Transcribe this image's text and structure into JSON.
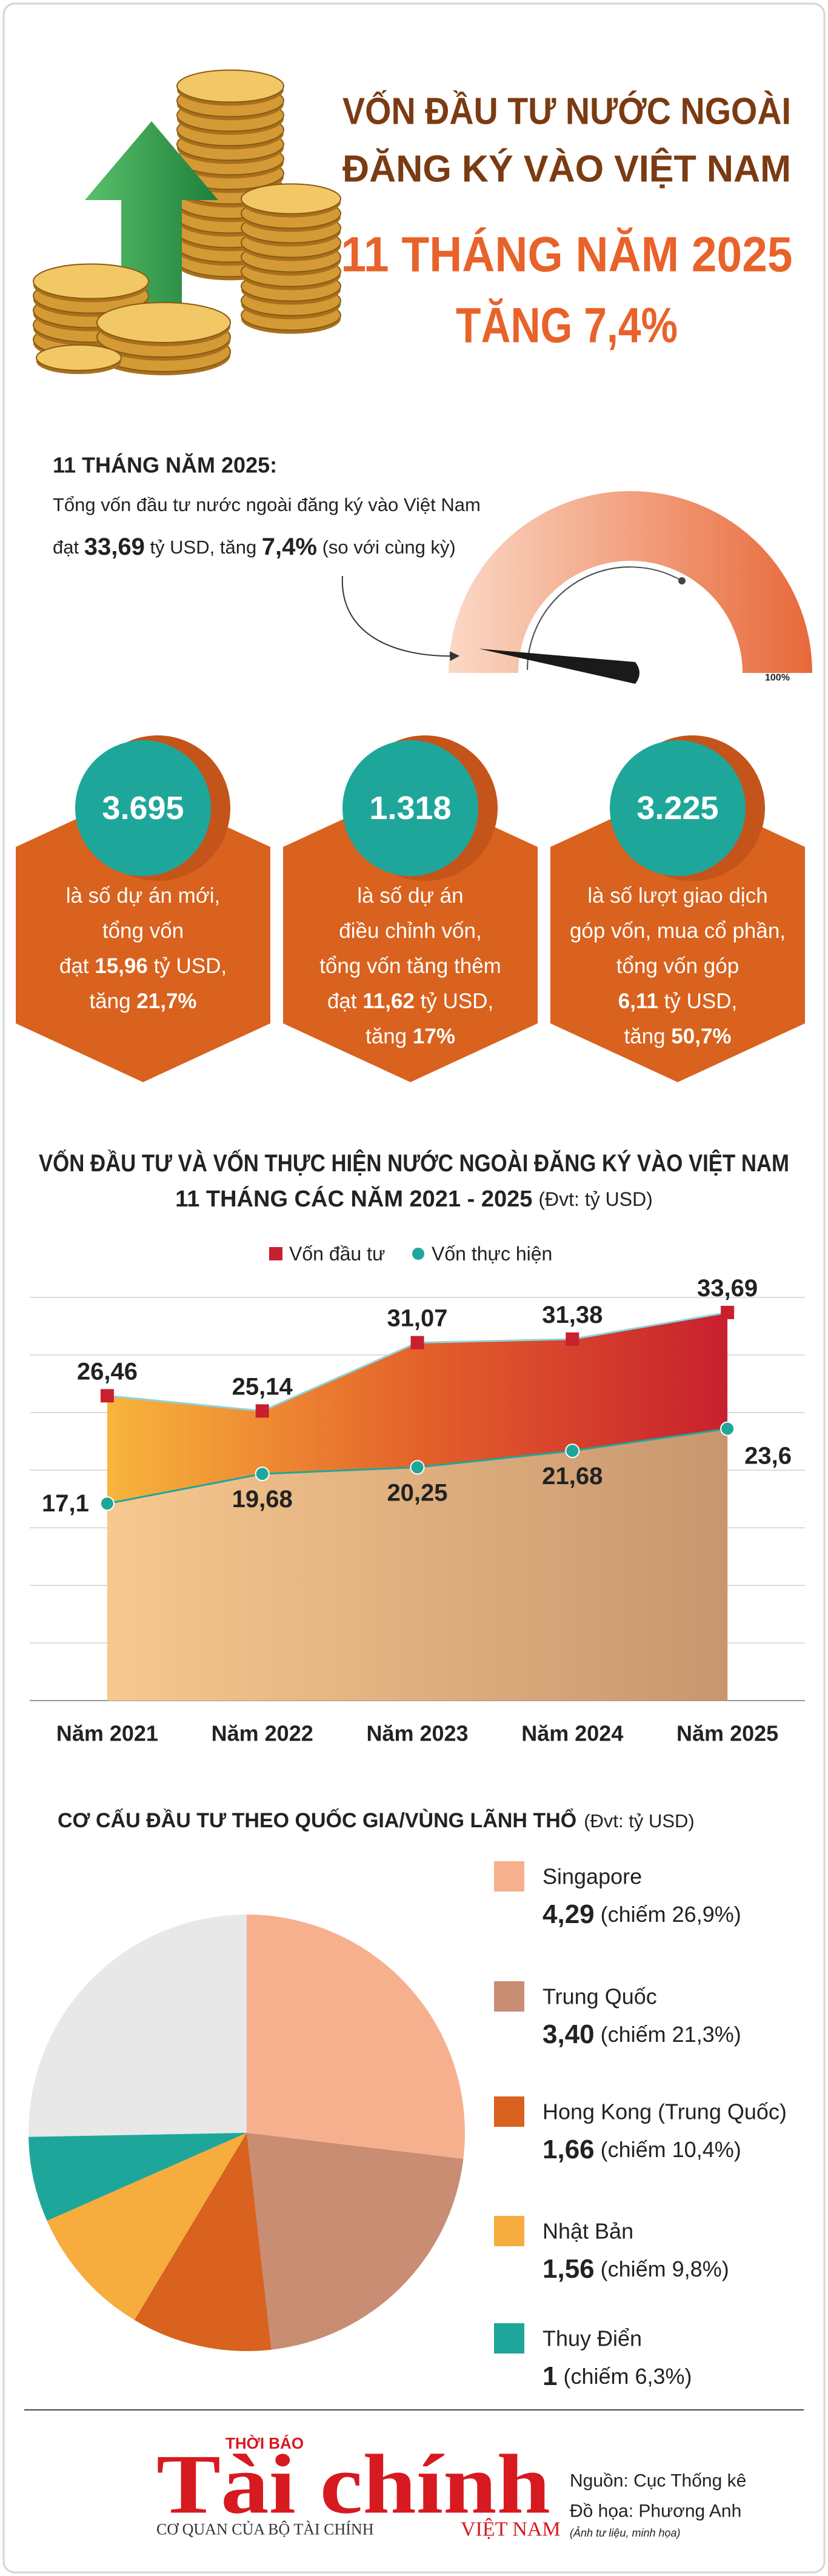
{
  "header": {
    "title_lines": [
      "VỐN ĐẦU TƯ NƯỚC NGOÀI",
      "ĐĂNG KÝ VÀO VIỆT NAM"
    ],
    "highlight_lines": [
      "11 THÁNG NĂM 2025",
      "TĂNG 7,4%"
    ]
  },
  "summary": {
    "heading": "11 THÁNG NĂM 2025:",
    "lines": [
      [
        {
          "text": "Tổng vốn đầu tư nước ngoài đăng ký vào Việt Nam"
        }
      ],
      [
        {
          "text": "đạt "
        },
        {
          "text": "33,69",
          "bold": true
        },
        {
          "text": " tỷ USD, tăng "
        },
        {
          "text": "7,4%",
          "bold": true
        },
        {
          "text": " (so với cùng kỳ)"
        }
      ]
    ],
    "gauge_label": "100%"
  },
  "stats": [
    {
      "number": "3.695",
      "lines": [
        [
          {
            "text": "là số dự án mới,"
          }
        ],
        [
          {
            "text": "tổng vốn"
          }
        ],
        [
          {
            "text": "đạt "
          },
          {
            "text": "15,96",
            "bold": true
          },
          {
            "text": " tỷ USD,"
          }
        ],
        [
          {
            "text": "tăng "
          },
          {
            "text": "21,7%",
            "bold": true
          }
        ]
      ]
    },
    {
      "number": "1.318",
      "lines": [
        [
          {
            "text": "là số dự án"
          }
        ],
        [
          {
            "text": "điều chỉnh vốn,"
          }
        ],
        [
          {
            "text": "tổng vốn tăng thêm"
          }
        ],
        [
          {
            "text": "đạt "
          },
          {
            "text": "11,62",
            "bold": true
          },
          {
            "text": " tỷ USD,"
          }
        ],
        [
          {
            "text": "tăng "
          },
          {
            "text": "17%",
            "bold": true
          }
        ]
      ]
    },
    {
      "number": "3.225",
      "lines": [
        [
          {
            "text": "là số lượt giao dịch"
          }
        ],
        [
          {
            "text": "góp vốn, mua cổ phần,"
          }
        ],
        [
          {
            "text": "tổng vốn góp"
          }
        ],
        [
          {
            "text": "6,11",
            "bold": true
          },
          {
            "text": " tỷ USD,"
          }
        ],
        [
          {
            "text": "tăng "
          },
          {
            "text": "50,7%",
            "bold": true
          }
        ]
      ]
    }
  ],
  "chart_data": [
    {
      "type": "line",
      "title_lines": [
        "VỐN ĐẦU TƯ VÀ VỐN THỰC HIỆN NƯỚC NGOÀI ĐĂNG KÝ VÀO VIỆT NAM",
        "11 THÁNG CÁC NĂM 2021 - 2025"
      ],
      "unit": "(Đvt: tỷ USD)",
      "categories": [
        "Năm 2021",
        "Năm 2022",
        "Năm 2023",
        "Năm 2024",
        "Năm 2025"
      ],
      "series": [
        {
          "name": "Vốn đầu tư",
          "color": "#c8202e",
          "values": [
            26.46,
            25.14,
            31.07,
            31.38,
            33.69
          ],
          "value_labels": [
            "26,46",
            "25,14",
            "31,07",
            "31,38",
            "33,69"
          ]
        },
        {
          "name": "Vốn thực hiện",
          "color": "#1fa69a",
          "values": [
            17.1,
            19.68,
            20.25,
            21.68,
            23.6
          ],
          "value_labels": [
            "17,1",
            "19,68",
            "20,25",
            "21,68",
            "23,6"
          ]
        }
      ],
      "ylim": [
        0,
        38
      ],
      "yticks": [
        0,
        5,
        10,
        15,
        20,
        25,
        30,
        35
      ],
      "grid": true
    },
    {
      "type": "pie",
      "title": "CƠ CẤU ĐẦU TƯ THEO QUỐC GIA/VÙNG LÃNH THỔ",
      "unit": "(Đvt: tỷ USD)",
      "categories": [
        "Singapore",
        "Trung Quốc",
        "Hong Kong (Trung Quốc)",
        "Nhật Bản",
        "Thuy Điển"
      ],
      "values": [
        4.29,
        3.4,
        1.66,
        1.56,
        1
      ],
      "value_labels": [
        "4,29",
        "3,40",
        "1,66",
        "1,56",
        "1"
      ],
      "shares": [
        26.9,
        21.3,
        10.4,
        9.8,
        6.3
      ],
      "share_labels": [
        "(chiếm 26,9%)",
        "(chiếm 21,3%)",
        "(chiếm 10,4%)",
        "(chiếm 9,8%)",
        "(chiếm 6,3%)"
      ],
      "colors": [
        "#f7b08e",
        "#c98d74",
        "#d8621e",
        "#f6ad3d",
        "#1fa69a"
      ]
    }
  ],
  "footer": {
    "logo_top": "THỜI BÁO",
    "logo_main": "Tài chính",
    "logo_sub": "CƠ QUAN CỦA BỘ TÀI CHÍNH",
    "logo_country": "VIỆT NAM",
    "source": "Nguồn: Cục Thống kê",
    "design": "Đồ họa: Phương Anh",
    "note": "(Ảnh tư liệu, minh họa)"
  }
}
